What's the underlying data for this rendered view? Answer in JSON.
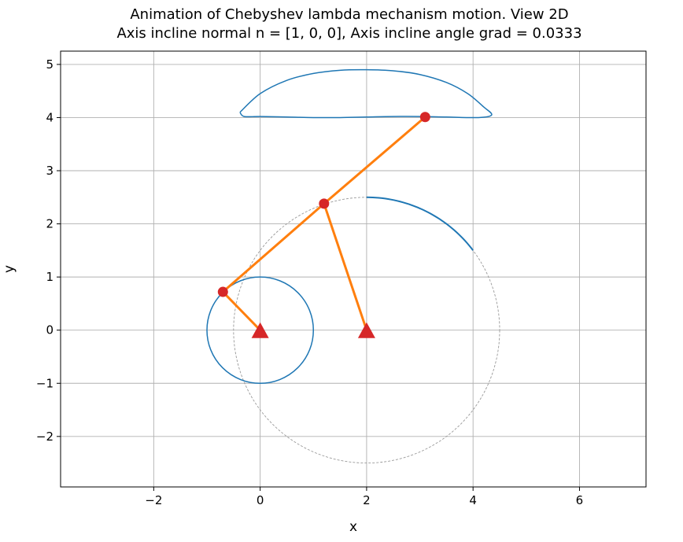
{
  "chart_data": {
    "type": "line",
    "title_line1": "Animation of Chebyshev lambda mechanism motion. View 2D",
    "title_line2": "Axis incline normal n = [1, 0, 0], Axis incline angle grad = 0.0333",
    "xlabel": "x",
    "ylabel": "y",
    "xlim": [
      -3.75,
      7.25
    ],
    "ylim": [
      -2.95,
      5.25
    ],
    "grid": true,
    "xticks": [
      -2,
      0,
      2,
      4,
      6
    ],
    "xtick_labels": [
      "−2",
      "0",
      "2",
      "4",
      "6"
    ],
    "yticks": [
      -2,
      -1,
      0,
      1,
      2,
      3,
      4,
      5
    ],
    "ytick_labels": [
      "−2",
      "−1",
      "0",
      "1",
      "2",
      "3",
      "4",
      "5"
    ],
    "crank_circle": {
      "center": [
        0,
        0
      ],
      "radius": 1,
      "color": "#1f77b4"
    },
    "rocker_circle": {
      "center": [
        2,
        0
      ],
      "radius": 2.5,
      "color": "#999999",
      "style": "dashed"
    },
    "coupler_curve": {
      "color": "#1f77b4",
      "upper": [
        [
          -0.38,
          4.1
        ],
        [
          0,
          4.45
        ],
        [
          0.5,
          4.7
        ],
        [
          1,
          4.83
        ],
        [
          1.5,
          4.89
        ],
        [
          2,
          4.9
        ],
        [
          2.5,
          4.88
        ],
        [
          3,
          4.81
        ],
        [
          3.5,
          4.66
        ],
        [
          3.9,
          4.45
        ],
        [
          4.2,
          4.2
        ],
        [
          4.35,
          4.05
        ]
      ],
      "lower": [
        [
          4.35,
          4.05
        ],
        [
          4.1,
          4.0
        ],
        [
          3.5,
          4.01
        ],
        [
          3,
          4.02
        ],
        [
          2.5,
          4.02
        ],
        [
          2,
          4.01
        ],
        [
          1.5,
          4.0
        ],
        [
          1,
          4.0
        ],
        [
          0.5,
          4.01
        ],
        [
          0,
          4.02
        ],
        [
          -0.3,
          4.02
        ],
        [
          -0.38,
          4.1
        ]
      ]
    },
    "rocker_arc": {
      "color": "#1f77b4",
      "from_deg": 36.9,
      "to_deg": 90.0,
      "center": [
        2,
        0
      ],
      "radius": 2.5
    },
    "links": {
      "color": "#ff7f0e",
      "segments": [
        [
          [
            0,
            0
          ],
          [
            -0.7,
            0.72
          ]
        ],
        [
          [
            -0.7,
            0.72
          ],
          [
            1.2,
            2.38
          ]
        ],
        [
          [
            1.2,
            2.38
          ],
          [
            3.1,
            4.01
          ]
        ],
        [
          [
            1.2,
            2.38
          ],
          [
            2,
            0
          ]
        ]
      ]
    },
    "joints": {
      "color": "#d62728",
      "points": [
        [
          -0.7,
          0.72
        ],
        [
          1.2,
          2.38
        ],
        [
          3.1,
          4.01
        ]
      ]
    },
    "pivots": {
      "color": "#d62728",
      "points": [
        [
          0,
          0
        ],
        [
          2,
          0
        ]
      ]
    }
  }
}
